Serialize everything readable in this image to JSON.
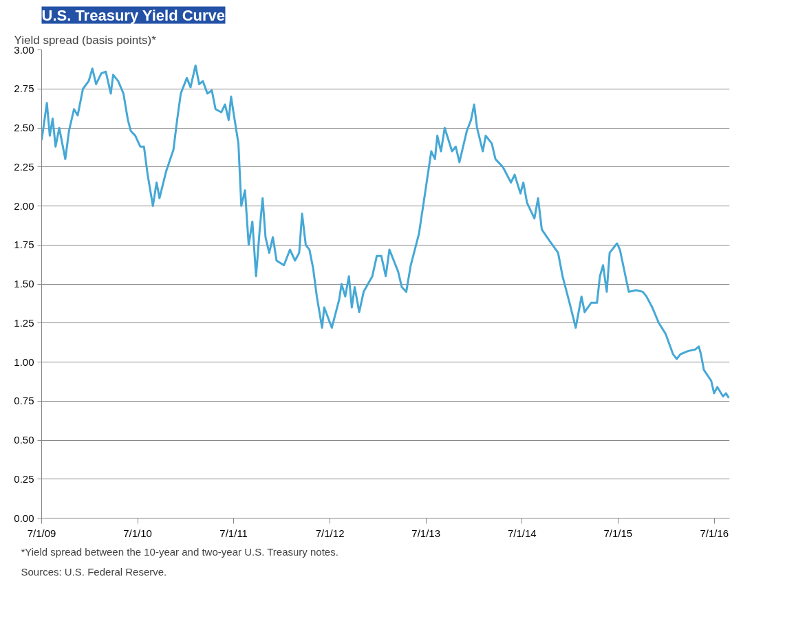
{
  "chart_data": {
    "type": "line",
    "title": "U.S. Treasury Yield Curve",
    "ylabel": "Yield spread (basis points)*",
    "annotations": [
      "*Yield spread between the 10-year and two-year U.S. Treasury notes.",
      "Sources: U.S. Federal Reserve."
    ],
    "xlim": [
      "2009-07-01",
      "2016-08-28"
    ],
    "xticks": [
      {
        "value": "2009-07-01",
        "label": "7/1/09"
      },
      {
        "value": "2010-07-01",
        "label": "7/1/10"
      },
      {
        "value": "2011-07-01",
        "label": "7/1/11"
      },
      {
        "value": "2012-07-01",
        "label": "7/1/12"
      },
      {
        "value": "2013-07-01",
        "label": "7/1/13"
      },
      {
        "value": "2014-07-01",
        "label": "7/1/14"
      },
      {
        "value": "2015-07-01",
        "label": "7/1/15"
      },
      {
        "value": "2016-07-01",
        "label": "7/1/16"
      }
    ],
    "ylim": [
      0,
      3
    ],
    "yticks": [
      {
        "value": 0,
        "label": "0.00"
      },
      {
        "value": 0.25,
        "label": "0.25"
      },
      {
        "value": 0.5,
        "label": "0.50"
      },
      {
        "value": 0.75,
        "label": "0.75"
      },
      {
        "value": 1,
        "label": "1.00"
      },
      {
        "value": 1.25,
        "label": "1.25"
      },
      {
        "value": 1.5,
        "label": "1.50"
      },
      {
        "value": 1.75,
        "label": "1.75"
      },
      {
        "value": 2,
        "label": "2.00"
      },
      {
        "value": 2.25,
        "label": "2.25"
      },
      {
        "value": 2.5,
        "label": "2.50"
      },
      {
        "value": 2.75,
        "label": "2.75"
      },
      {
        "value": 3,
        "label": "3.00"
      }
    ],
    "grid": "y",
    "marker": "none",
    "line_style": "solid",
    "x": [
      "2009-07-01",
      "2009-07-21",
      "2009-08-01",
      "2009-08-12",
      "2009-08-23",
      "2009-09-06",
      "2009-09-29",
      "2009-10-13",
      "2009-11-01",
      "2009-11-15",
      "2009-12-05",
      "2009-12-27",
      "2010-01-10",
      "2010-01-24",
      "2010-02-13",
      "2010-03-02",
      "2010-03-21",
      "2010-03-30",
      "2010-04-18",
      "2010-05-08",
      "2010-05-25",
      "2010-06-05",
      "2010-06-22",
      "2010-07-11",
      "2010-07-25",
      "2010-08-08",
      "2010-08-28",
      "2010-09-11",
      "2010-09-22",
      "2010-10-17",
      "2010-11-14",
      "2010-11-28",
      "2010-12-12",
      "2011-01-04",
      "2011-01-18",
      "2011-02-06",
      "2011-02-20",
      "2011-03-06",
      "2011-03-23",
      "2011-04-09",
      "2011-04-23",
      "2011-05-15",
      "2011-05-29",
      "2011-06-12",
      "2011-06-21",
      "2011-07-02",
      "2011-07-19",
      "2011-07-30",
      "2011-08-13",
      "2011-08-27",
      "2011-09-10",
      "2011-09-24",
      "2011-10-08",
      "2011-10-19",
      "2011-10-30",
      "2011-11-13",
      "2011-11-27",
      "2011-12-11",
      "2012-01-08",
      "2012-01-31",
      "2012-02-19",
      "2012-03-06",
      "2012-03-17",
      "2012-03-31",
      "2012-04-14",
      "2012-04-28",
      "2012-05-12",
      "2012-06-01",
      "2012-06-09",
      "2012-07-08",
      "2012-08-05",
      "2012-08-14",
      "2012-08-28",
      "2012-09-11",
      "2012-09-22",
      "2012-10-03",
      "2012-10-20",
      "2012-11-06",
      "2012-12-09",
      "2012-12-26",
      "2013-01-12",
      "2013-01-29",
      "2013-02-12",
      "2013-03-17",
      "2013-03-31",
      "2013-04-17",
      "2013-05-04",
      "2013-06-04",
      "2013-06-29",
      "2013-07-21",
      "2013-08-04",
      "2013-08-13",
      "2013-08-27",
      "2013-09-10",
      "2013-10-08",
      "2013-10-22",
      "2013-11-05",
      "2013-12-03",
      "2013-12-19",
      "2013-12-31",
      "2014-01-11",
      "2014-02-02",
      "2014-02-13",
      "2014-03-08",
      "2014-03-22",
      "2014-04-19",
      "2014-05-20",
      "2014-06-03",
      "2014-06-25",
      "2014-07-06",
      "2014-07-20",
      "2014-08-17",
      "2014-08-31",
      "2014-09-14",
      "2014-10-12",
      "2014-11-15",
      "2014-12-02",
      "2014-12-30",
      "2015-01-21",
      "2015-02-12",
      "2015-02-24",
      "2015-03-21",
      "2015-04-12",
      "2015-04-23",
      "2015-05-05",
      "2015-05-19",
      "2015-05-30",
      "2015-06-27",
      "2015-07-08",
      "2015-08-02",
      "2015-08-11",
      "2015-09-08",
      "2015-10-03",
      "2015-10-17",
      "2015-11-08",
      "2015-12-03",
      "2015-12-29",
      "2016-01-26",
      "2016-02-09",
      "2016-02-23",
      "2016-03-22",
      "2016-04-19",
      "2016-05-03",
      "2016-05-11",
      "2016-05-22",
      "2016-06-19",
      "2016-06-30",
      "2016-07-12",
      "2016-08-03",
      "2016-08-14",
      "2016-08-25"
    ],
    "series": [
      {
        "color": "#45a8d6",
        "values": [
          2.42,
          2.66,
          2.45,
          2.56,
          2.38,
          2.5,
          2.3,
          2.48,
          2.62,
          2.58,
          2.75,
          2.8,
          2.88,
          2.78,
          2.85,
          2.86,
          2.72,
          2.84,
          2.8,
          2.72,
          2.55,
          2.48,
          2.45,
          2.38,
          2.38,
          2.2,
          2.0,
          2.15,
          2.05,
          2.22,
          2.36,
          2.55,
          2.72,
          2.82,
          2.76,
          2.9,
          2.78,
          2.8,
          2.72,
          2.74,
          2.62,
          2.6,
          2.65,
          2.55,
          2.7,
          2.58,
          2.4,
          2.0,
          2.1,
          1.75,
          1.9,
          1.55,
          1.85,
          2.05,
          1.8,
          1.7,
          1.8,
          1.65,
          1.62,
          1.72,
          1.65,
          1.7,
          1.95,
          1.75,
          1.72,
          1.6,
          1.42,
          1.22,
          1.35,
          1.22,
          1.4,
          1.5,
          1.42,
          1.55,
          1.35,
          1.48,
          1.32,
          1.45,
          1.55,
          1.68,
          1.68,
          1.55,
          1.72,
          1.58,
          1.48,
          1.45,
          1.62,
          1.82,
          2.1,
          2.35,
          2.3,
          2.45,
          2.35,
          2.5,
          2.35,
          2.38,
          2.28,
          2.48,
          2.55,
          2.65,
          2.5,
          2.35,
          2.45,
          2.4,
          2.3,
          2.25,
          2.15,
          2.2,
          2.08,
          2.15,
          2.02,
          1.92,
          2.05,
          1.85,
          1.78,
          1.7,
          1.55,
          1.37,
          1.22,
          1.42,
          1.32,
          1.38,
          1.38,
          1.55,
          1.62,
          1.45,
          1.7,
          1.76,
          1.72,
          1.52,
          1.45,
          1.46,
          1.45,
          1.42,
          1.35,
          1.25,
          1.18,
          1.05,
          1.02,
          1.05,
          1.07,
          1.08,
          1.1,
          1.05,
          0.95,
          0.88,
          0.8,
          0.84,
          0.78,
          0.8,
          0.77
        ]
      }
    ]
  }
}
